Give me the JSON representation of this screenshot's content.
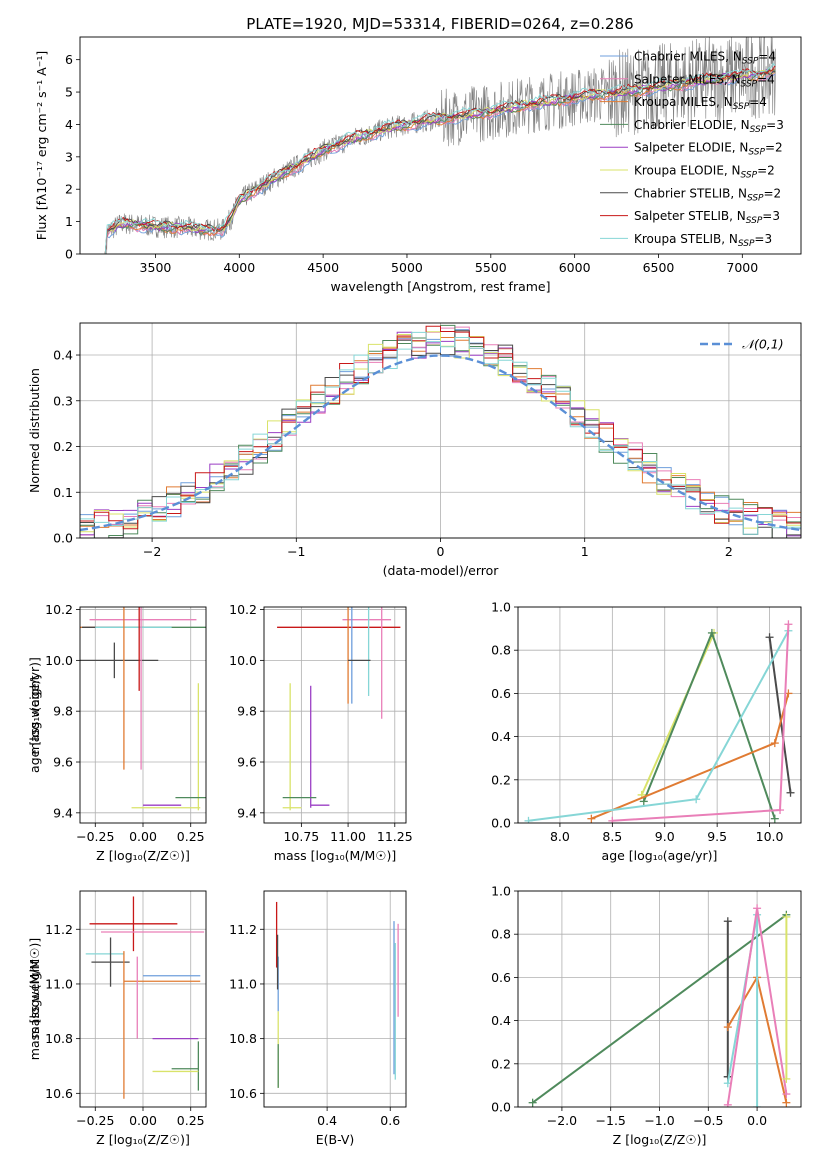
{
  "title": "PLATE=1920, MJD=53314, FIBERID=0264, z=0.286",
  "colors": {
    "chabrier_miles": "#6f9fdc",
    "salpeter_miles": "#e97fb8",
    "kroupa_miles": "#e07b33",
    "chabrier_elodie": "#4f8a5c",
    "salpeter_elodie": "#9b3fc4",
    "kroupa_elodie": "#d9e36a",
    "chabrier_stelib": "#4a4a4a",
    "salpeter_stelib": "#c81818",
    "kroupa_stelib": "#86d6d6",
    "data": "#808080",
    "normal": "#5a8fd6",
    "grid": "#b0b0b0"
  },
  "legend": [
    {
      "key": "chabrier_miles",
      "label": "Chabrier MILES, N",
      "sub": "SSP",
      "suffix": "=4"
    },
    {
      "key": "salpeter_miles",
      "label": "Salpeter MILES, N",
      "sub": "SSP",
      "suffix": "=4"
    },
    {
      "key": "kroupa_miles",
      "label": "Kroupa MILES, N",
      "sub": "SSP",
      "suffix": "=4"
    },
    {
      "key": "chabrier_elodie",
      "label": "Chabrier ELODIE, N",
      "sub": "SSP",
      "suffix": "=3"
    },
    {
      "key": "salpeter_elodie",
      "label": "Salpeter ELODIE, N",
      "sub": "SSP",
      "suffix": "=2"
    },
    {
      "key": "kroupa_elodie",
      "label": "Kroupa ELODIE, N",
      "sub": "SSP",
      "suffix": "=2"
    },
    {
      "key": "chabrier_stelib",
      "label": "Chabrier STELIB, N",
      "sub": "SSP",
      "suffix": "=2"
    },
    {
      "key": "salpeter_stelib",
      "label": "Salpeter STELIB, N",
      "sub": "SSP",
      "suffix": "=3"
    },
    {
      "key": "kroupa_stelib",
      "label": "Kroupa STELIB, N",
      "sub": "SSP",
      "suffix": "=3"
    }
  ],
  "chart_data": [
    {
      "id": "spectrum",
      "type": "line",
      "xlabel": "wavelength [Angstrom, rest frame]",
      "ylabel": "Flux [fλ10⁻¹⁷ erg cm⁻² s⁻¹ A⁻¹]",
      "xlim": [
        3050,
        7350
      ],
      "ylim": [
        0,
        6.7
      ],
      "xticks": [
        3500,
        4000,
        4500,
        5000,
        5500,
        6000,
        6500,
        7000
      ],
      "yticks": [
        0,
        1,
        2,
        3,
        4,
        5,
        6
      ],
      "grid": false,
      "legend_position": "upper-right",
      "model_continuum": {
        "x": [
          3200,
          3300,
          3500,
          3700,
          3800,
          3900,
          3950,
          4000,
          4100,
          4300,
          4500,
          4700,
          4900,
          5100,
          5300,
          5500,
          5700,
          5900,
          6100,
          6300,
          6500,
          6700,
          6900,
          7100,
          7200
        ],
        "y": [
          0.65,
          0.95,
          0.85,
          0.8,
          0.75,
          0.75,
          1.1,
          1.65,
          2.0,
          2.6,
          3.2,
          3.6,
          3.9,
          4.1,
          4.25,
          4.4,
          4.6,
          4.75,
          4.9,
          5.0,
          5.15,
          5.3,
          5.45,
          5.55,
          5.65
        ]
      },
      "data_range": [
        3200,
        7200
      ],
      "observed_noise": 0.35
    },
    {
      "id": "residuals",
      "type": "histogram",
      "xlabel": "(data-model)/error",
      "ylabel": "Normed distribution",
      "xlim": [
        -2.5,
        2.5
      ],
      "ylim": [
        0,
        0.47
      ],
      "xticks": [
        -2,
        -1,
        0,
        1,
        2
      ],
      "yticks": [
        0,
        0.1,
        0.2,
        0.3,
        0.4
      ],
      "grid": true,
      "legend_position": "upper-right",
      "legend_label": "𝒩(0,1)",
      "bin_width": 0.1
    },
    {
      "id": "age_vs_z",
      "type": "errorbar",
      "xlabel": "Z [log₁₀(Z/Z☉)]",
      "ylabel": "age  [log₁₀(age/yr)]",
      "xlim": [
        -0.33,
        0.33
      ],
      "ylim": [
        9.36,
        10.21
      ],
      "xticks": [
        -0.25,
        0.0,
        0.25
      ],
      "yticks": [
        9.4,
        9.6,
        9.8,
        10.0,
        10.2
      ],
      "grid": true,
      "points": [
        {
          "key": "salpeter_miles",
          "x": 0.0,
          "y": 10.16,
          "xerr": 0.28,
          "yerr": 0.0
        },
        {
          "key": "kroupa_miles",
          "x": -0.1,
          "y": 10.13,
          "xerr": 0.25,
          "yerr": 0.0
        },
        {
          "key": "chabrier_elodie",
          "x": 0.3,
          "y": 10.13,
          "xerr": 0.42,
          "yerr": 0.0
        },
        {
          "key": "chabrier_stelib",
          "x": -0.22,
          "y": 10.13,
          "xerr": 0.1,
          "yerr": 0.0
        },
        {
          "key": "kroupa_stelib",
          "x": -0.05,
          "y": 10.13,
          "xerr": 0.2,
          "yerr": 0.0
        },
        {
          "key": "chabrier_stelib",
          "x": -0.15,
          "y": 10.0,
          "xerr": 0.23,
          "yerr": 0.07
        },
        {
          "key": "salpeter_stelib",
          "x": -0.02,
          "y": 10.13,
          "xerr": 0.0,
          "yerr": 0.25
        },
        {
          "key": "kroupa_miles",
          "x": -0.1,
          "y": 10.0,
          "xerr": 0.0,
          "yerr": 0.43
        },
        {
          "key": "salpeter_miles",
          "x": -0.01,
          "y": 10.13,
          "xerr": 0.0,
          "yerr": 0.56
        },
        {
          "key": "kroupa_elodie",
          "x": 0.29,
          "y": 9.66,
          "xerr": 0.0,
          "yerr": 0.25
        },
        {
          "key": "chabrier_elodie",
          "x": 0.29,
          "y": 9.46,
          "xerr": 0.12,
          "yerr": 0.0
        },
        {
          "key": "salpeter_elodie",
          "x": 0.1,
          "y": 9.43,
          "xerr": 0.1,
          "yerr": 0.0
        },
        {
          "key": "kroupa_elodie",
          "x": 0.12,
          "y": 9.42,
          "xerr": 0.18,
          "yerr": 0.0
        }
      ]
    },
    {
      "id": "age_vs_mass",
      "type": "errorbar",
      "xlabel": "mass [log₁₀(M/M☉)]",
      "ylabel": "",
      "xlim": [
        10.55,
        11.31
      ],
      "ylim": [
        9.36,
        10.21
      ],
      "xticks": [
        10.75,
        11.0,
        11.25
      ],
      "yticks": [
        9.4,
        9.6,
        9.8,
        10.0,
        10.2
      ],
      "grid": true,
      "points": [
        {
          "key": "salpeter_miles",
          "x": 11.1,
          "y": 10.16,
          "xerr": 0.13,
          "yerr": 0.0
        },
        {
          "key": "salpeter_stelib",
          "x": 10.95,
          "y": 10.13,
          "xerr": 0.33,
          "yerr": 0.0
        },
        {
          "key": "kroupa_miles",
          "x": 11.0,
          "y": 10.13,
          "xerr": 0.0,
          "yerr": 0.3
        },
        {
          "key": "chabrier_miles",
          "x": 11.02,
          "y": 10.13,
          "xerr": 0.0,
          "yerr": 0.3
        },
        {
          "key": "kroupa_stelib",
          "x": 11.11,
          "y": 10.13,
          "xerr": 0.0,
          "yerr": 0.27
        },
        {
          "key": "salpeter_miles",
          "x": 11.18,
          "y": 10.13,
          "xerr": 0.0,
          "yerr": 0.36
        },
        {
          "key": "chabrier_stelib",
          "x": 11.06,
          "y": 10.0,
          "xerr": 0.06,
          "yerr": 0.0
        },
        {
          "key": "kroupa_elodie",
          "x": 10.69,
          "y": 9.66,
          "xerr": 0.0,
          "yerr": 0.25
        },
        {
          "key": "salpeter_elodie",
          "x": 10.8,
          "y": 9.66,
          "xerr": 0.0,
          "yerr": 0.24
        },
        {
          "key": "chabrier_elodie",
          "x": 10.74,
          "y": 9.46,
          "xerr": 0.09,
          "yerr": 0.0
        },
        {
          "key": "salpeter_elodie",
          "x": 10.85,
          "y": 9.43,
          "xerr": 0.05,
          "yerr": 0.0
        },
        {
          "key": "kroupa_elodie",
          "x": 10.7,
          "y": 9.42,
          "xerr": 0.05,
          "yerr": 0.0
        }
      ]
    },
    {
      "id": "massweight_vs_age",
      "type": "line",
      "xlabel": "age  [log₁₀(age/yr)]",
      "ylabel": "mass weight",
      "xlim": [
        7.6,
        10.3
      ],
      "ylim": [
        0,
        1.0
      ],
      "xticks": [
        8.0,
        8.5,
        9.0,
        9.5,
        10.0
      ],
      "yticks": [
        0.0,
        0.2,
        0.4,
        0.6,
        0.8,
        1.0
      ],
      "grid": true,
      "series": [
        {
          "key": "kroupa_elodie",
          "x": [
            8.78,
            9.47,
            8.78
          ],
          "y": [
            0.13,
            0.88,
            0.13
          ]
        },
        {
          "key": "chabrier_elodie",
          "x": [
            8.8,
            9.45,
            10.05
          ],
          "y": [
            0.1,
            0.88,
            0.02
          ]
        },
        {
          "key": "chabrier_stelib",
          "x": [
            10.0,
            10.2
          ],
          "y": [
            0.86,
            0.14
          ]
        },
        {
          "key": "kroupa_miles",
          "x": [
            8.3,
            10.05,
            10.18
          ],
          "y": [
            0.02,
            0.37,
            0.6
          ]
        },
        {
          "key": "kroupa_stelib",
          "x": [
            7.7,
            9.3,
            10.18
          ],
          "y": [
            0.01,
            0.11,
            0.89
          ]
        },
        {
          "key": "salpeter_miles",
          "x": [
            8.5,
            10.1,
            10.18
          ],
          "y": [
            0.01,
            0.06,
            0.92
          ]
        }
      ]
    },
    {
      "id": "mass_vs_z",
      "type": "errorbar",
      "xlabel": "Z [log₁₀(Z/Z☉)]",
      "ylabel": "mass [log₁₀(M/M☉)]",
      "xlim": [
        -0.33,
        0.33
      ],
      "ylim": [
        10.55,
        11.34
      ],
      "xticks": [
        -0.25,
        0.0,
        0.25
      ],
      "yticks": [
        10.6,
        10.8,
        11.0,
        11.2
      ],
      "grid": true,
      "points": [
        {
          "key": "salpeter_stelib",
          "x": -0.05,
          "y": 11.22,
          "xerr": 0.23,
          "yerr": 0.1
        },
        {
          "key": "salpeter_miles",
          "x": 0.05,
          "y": 11.19,
          "xerr": 0.27,
          "yerr": 0.0
        },
        {
          "key": "kroupa_stelib",
          "x": -0.2,
          "y": 11.11,
          "xerr": 0.1,
          "yerr": 0.0
        },
        {
          "key": "chabrier_stelib",
          "x": -0.17,
          "y": 11.08,
          "xerr": 0.1,
          "yerr": 0.09
        },
        {
          "key": "chabrier_miles",
          "x": 0.15,
          "y": 11.03,
          "xerr": 0.15,
          "yerr": 0.0
        },
        {
          "key": "kroupa_miles",
          "x": 0.1,
          "y": 11.01,
          "xerr": 0.2,
          "yerr": 0.0
        },
        {
          "key": "kroupa_miles",
          "x": -0.1,
          "y": 10.85,
          "xerr": 0.0,
          "yerr": 0.27
        },
        {
          "key": "salpeter_miles",
          "x": -0.03,
          "y": 10.95,
          "xerr": 0.0,
          "yerr": 0.15
        },
        {
          "key": "salpeter_elodie",
          "x": 0.17,
          "y": 10.8,
          "xerr": 0.12,
          "yerr": 0.0
        },
        {
          "key": "chabrier_elodie",
          "x": 0.29,
          "y": 10.7,
          "xerr": 0.0,
          "yerr": 0.09
        },
        {
          "key": "chabrier_elodie",
          "x": 0.22,
          "y": 10.69,
          "xerr": 0.07,
          "yerr": 0.0
        },
        {
          "key": "kroupa_elodie",
          "x": 0.17,
          "y": 10.68,
          "xerr": 0.12,
          "yerr": 0.0
        }
      ]
    },
    {
      "id": "mass_vs_ebv",
      "type": "errorbar",
      "xlabel": "E(B-V)",
      "ylabel": "",
      "xlim": [
        0.2,
        0.65
      ],
      "ylim": [
        10.55,
        11.34
      ],
      "xticks": [
        0.4,
        0.6
      ],
      "yticks": [
        10.6,
        10.8,
        11.0,
        11.2
      ],
      "grid": true,
      "points": [
        {
          "key": "salpeter_stelib",
          "x": 0.24,
          "y": 11.18,
          "xerr": 0.0,
          "yerr": 0.12
        },
        {
          "key": "chabrier_miles",
          "x": 0.245,
          "y": 11.0,
          "xerr": 0.0,
          "yerr": 0.1
        },
        {
          "key": "kroupa_elodie",
          "x": 0.245,
          "y": 10.76,
          "xerr": 0.0,
          "yerr": 0.14
        },
        {
          "key": "chabrier_stelib",
          "x": 0.243,
          "y": 11.08,
          "xerr": 0.0,
          "yerr": 0.1
        },
        {
          "key": "chabrier_elodie",
          "x": 0.245,
          "y": 10.7,
          "xerr": 0.0,
          "yerr": 0.08
        },
        {
          "key": "salpeter_miles",
          "x": 0.625,
          "y": 11.05,
          "xerr": 0.0,
          "yerr": 0.17
        },
        {
          "key": "chabrier_miles",
          "x": 0.612,
          "y": 10.95,
          "xerr": 0.0,
          "yerr": 0.28
        },
        {
          "key": "kroupa_stelib",
          "x": 0.616,
          "y": 10.9,
          "xerr": 0.0,
          "yerr": 0.25
        }
      ]
    },
    {
      "id": "massweight_vs_z",
      "type": "line",
      "xlabel": "Z [log₁₀(Z/Z☉)]",
      "ylabel": "mass weight",
      "xlim": [
        -2.45,
        0.45
      ],
      "ylim": [
        0,
        1.0
      ],
      "xticks": [
        -2.0,
        -1.5,
        -1.0,
        -0.5,
        0.0
      ],
      "yticks": [
        0.0,
        0.2,
        0.4,
        0.6,
        0.8,
        1.0
      ],
      "grid": true,
      "series": [
        {
          "key": "chabrier_elodie",
          "x": [
            -2.3,
            0.3
          ],
          "y": [
            0.02,
            0.89
          ]
        },
        {
          "key": "chabrier_stelib",
          "x": [
            -0.3,
            -0.3,
            -0.3
          ],
          "y": [
            0.14,
            0.86,
            0.14
          ]
        },
        {
          "key": "kroupa_miles",
          "x": [
            -0.3,
            0.0,
            0.3
          ],
          "y": [
            0.37,
            0.6,
            0.02
          ]
        },
        {
          "key": "kroupa_stelib",
          "x": [
            -0.3,
            0.0,
            0.0
          ],
          "y": [
            0.11,
            0.89,
            0.0
          ]
        },
        {
          "key": "salpeter_miles",
          "x": [
            -0.3,
            0.0,
            0.3
          ],
          "y": [
            0.01,
            0.92,
            0.06
          ]
        },
        {
          "key": "kroupa_elodie",
          "x": [
            0.3,
            0.3
          ],
          "y": [
            0.13,
            0.88
          ]
        }
      ]
    }
  ]
}
